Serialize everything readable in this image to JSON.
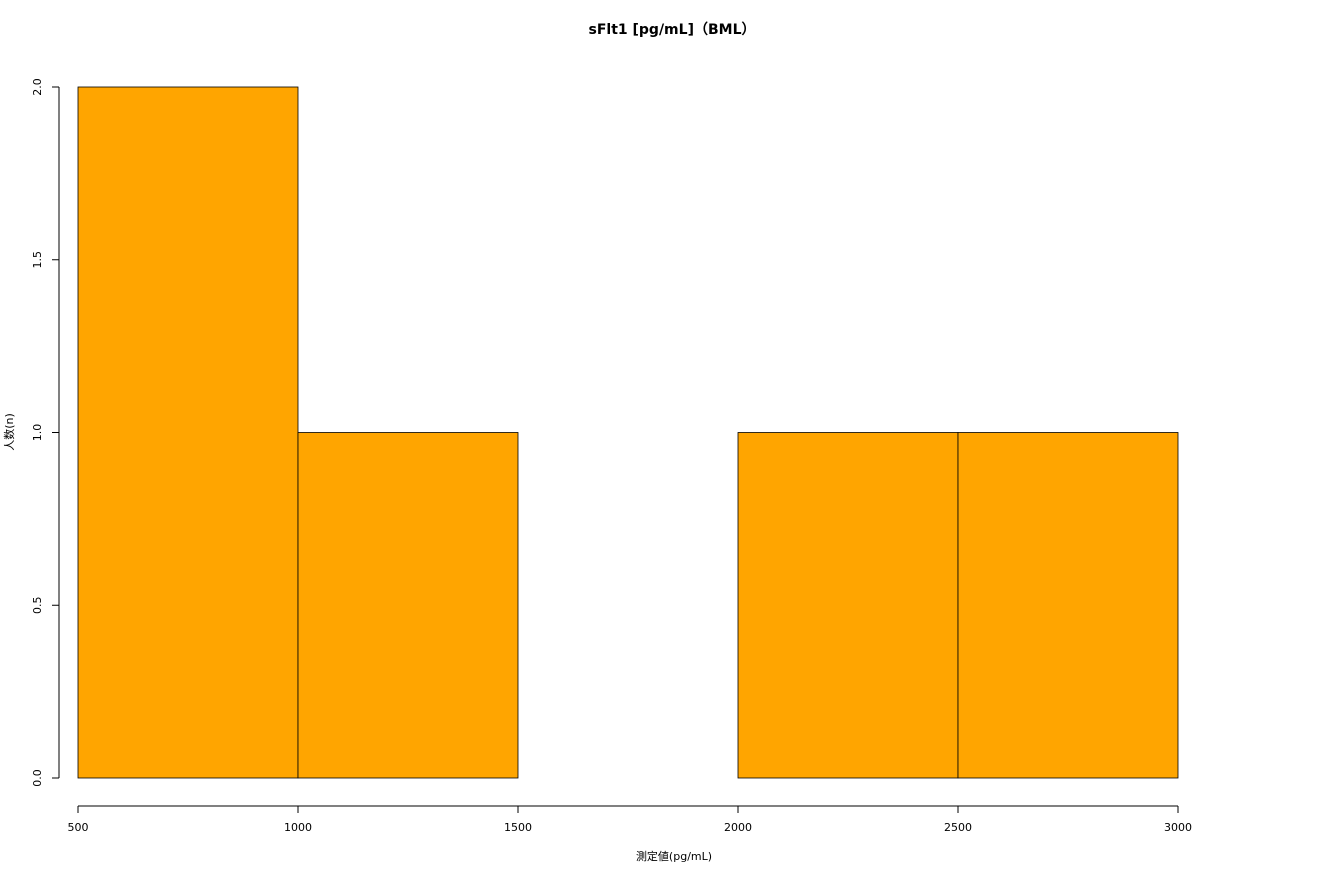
{
  "chart_data": {
    "type": "histogram",
    "title": "sFlt1 [pg/mL]（BML）",
    "x_label": "測定値(pg/mL)",
    "y_label": "人数(n)",
    "bins": [
      500,
      1000,
      1500,
      2000,
      2500,
      3000
    ],
    "counts": [
      2,
      1,
      0,
      1,
      1
    ],
    "color": "#ffa500",
    "xlim": [
      500,
      3000
    ],
    "xticks": [
      500,
      1000,
      1500,
      2000,
      2500,
      3000
    ],
    "ylim": [
      0,
      2
    ],
    "yticks": [
      {
        "value": 0,
        "label": "0.0"
      },
      0.5,
      {
        "value": 1,
        "label": "1.0"
      },
      1.5,
      {
        "value": 2,
        "label": "2.0"
      }
    ]
  }
}
